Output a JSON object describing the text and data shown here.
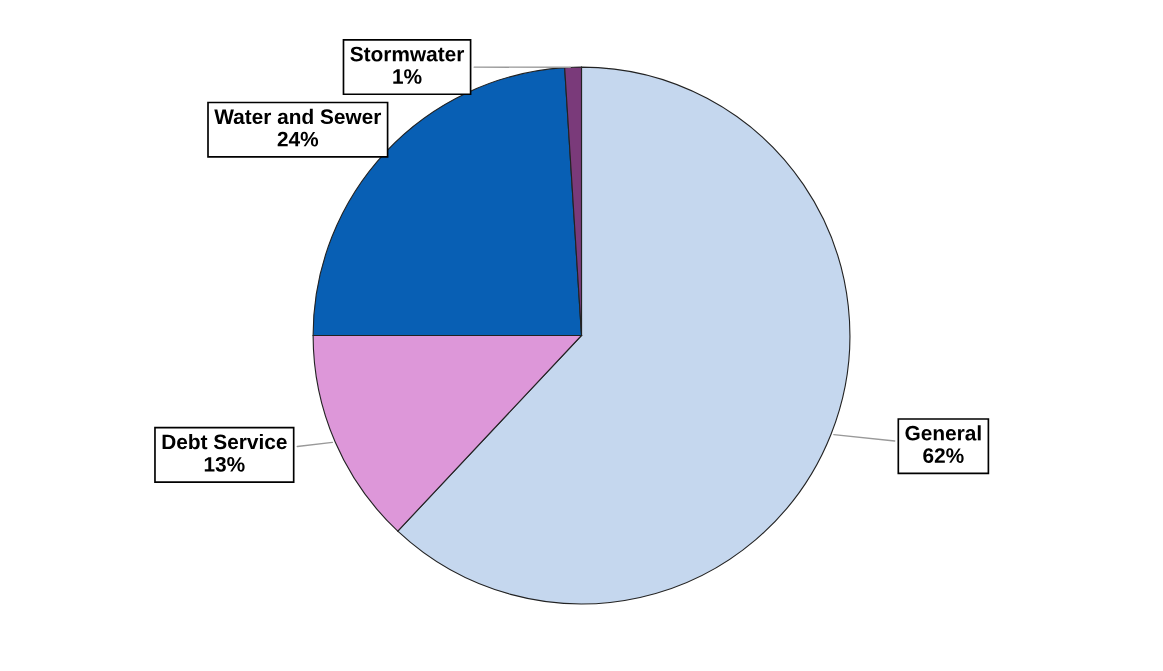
{
  "chart_data": {
    "type": "pie",
    "categories": [
      "General",
      "Debt Service",
      "Water and Sewer",
      "Stormwater"
    ],
    "values": [
      62,
      13,
      24,
      1
    ],
    "colors": [
      "#c5d7ee",
      "#dd97d9",
      "#085fb4",
      "#7a3a7a"
    ],
    "value_labels": [
      "62%",
      "13%",
      "24%",
      "1%"
    ]
  }
}
